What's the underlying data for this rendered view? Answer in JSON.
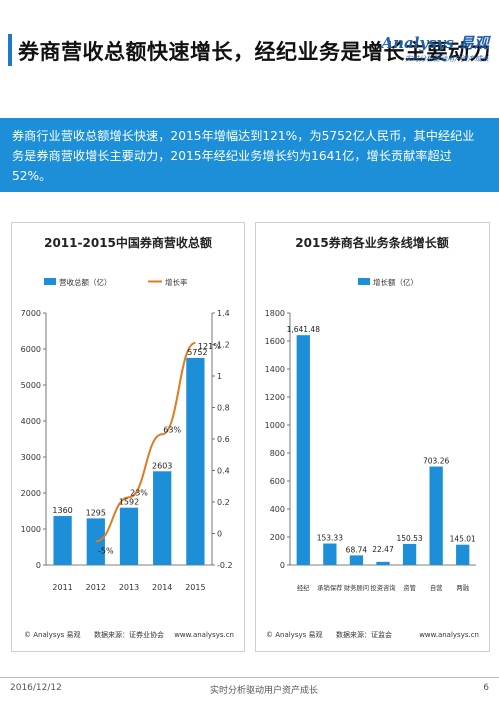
{
  "header": {
    "title": "券商营收总额快速增长，经纪业务是增长主要动力",
    "logo_name": "Analysys 易观",
    "logo_slogan": "实时分析驱动用户资产成长"
  },
  "banner": {
    "text": "券商行业营收总额增长快速，2015年增幅达到121%，为5752亿人民币，其中经纪业务是券商营收增长主要动力，2015年经纪业务增长约为1641亿，增长贡献率超过52%。"
  },
  "charts": [
    {
      "title": "2011-2015中国券商营收总额",
      "footer_left": "© Analysys 易观",
      "footer_source": "数据来源：证券业协会",
      "footer_url": "www.analysys.cn"
    },
    {
      "title": "2015券商各业务条线增长额",
      "footer_left": "© Analysys 易观",
      "footer_source": "数据来源：证监会",
      "footer_url": "www.analysys.cn"
    }
  ],
  "chart_data": [
    {
      "type": "bar",
      "title": "2011-2015中国券商营收总额",
      "categories": [
        "2011",
        "2012",
        "2013",
        "2014",
        "2015"
      ],
      "series": [
        {
          "name": "营收总额（亿）",
          "values": [
            1360,
            1295,
            1592,
            2603,
            5752
          ],
          "color": "#1c8fd8",
          "axis": "left",
          "labels": [
            "1360",
            "1295",
            "1592",
            "2603",
            "5752"
          ]
        },
        {
          "name": "增长率",
          "type": "line",
          "values": [
            null,
            -0.05,
            0.23,
            0.63,
            1.21
          ],
          "color": "#e07b22",
          "axis": "right",
          "labels": [
            "",
            "-5%",
            "23%",
            "63%",
            "121%"
          ]
        }
      ],
      "ylim": [
        0,
        7000
      ],
      "yticks": [
        "0",
        "1000",
        "2000",
        "3000",
        "4000",
        "5000",
        "6000",
        "7000"
      ],
      "y2lim": [
        -0.2,
        1.4
      ],
      "y2ticks": [
        "-0.2",
        "0",
        "0.2",
        "0.4",
        "0.6",
        "0.8",
        "1",
        "1.2",
        "1.4"
      ],
      "legend": "top",
      "grid": false
    },
    {
      "type": "bar",
      "title": "2015券商各业务条线增长额",
      "categories": [
        "经纪",
        "承销保荐",
        "财务顾问",
        "投资咨询",
        "资管",
        "自营",
        "两融"
      ],
      "series": [
        {
          "name": "增长额（亿）",
          "values": [
            1641.48,
            153.33,
            68.74,
            22.47,
            150.53,
            703.26,
            145.01
          ],
          "color": "#1c8fd8",
          "labels": [
            "1,641.48",
            "153.33",
            "68.74",
            "22.47",
            "150.53",
            "703.26",
            "145.01"
          ]
        }
      ],
      "ylim": [
        0,
        1800
      ],
      "yticks": [
        "0",
        "200",
        "400",
        "600",
        "800",
        "1000",
        "1200",
        "1400",
        "1600",
        "1800"
      ],
      "legend": "top",
      "grid": false
    }
  ],
  "footer": {
    "date": "2016/12/12",
    "center": "实时分析驱动用户资产成长",
    "page": "6"
  }
}
